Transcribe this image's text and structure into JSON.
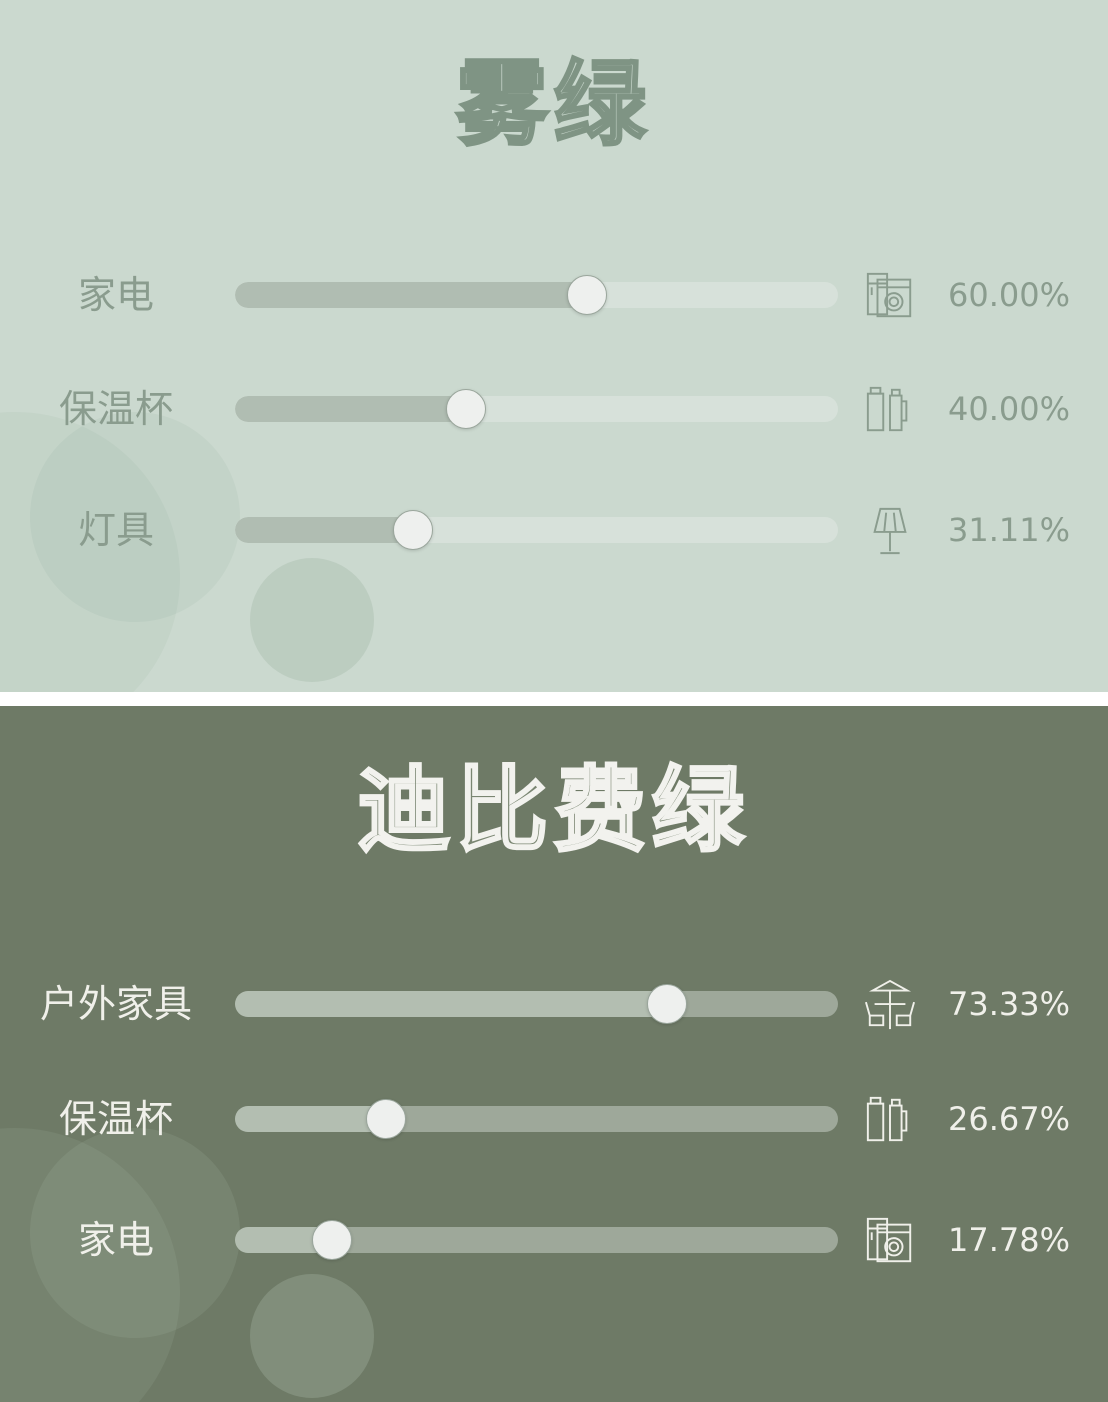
{
  "colors": {
    "panel1_bg": "#cbd9cf",
    "panel2_bg": "#6e7a66"
  },
  "chart_data": [
    {
      "type": "bar",
      "orientation": "horizontal",
      "style": "slider",
      "title": "雾绿",
      "xlim": [
        0,
        100
      ],
      "categories": [
        "家电",
        "保温杯",
        "灯具"
      ],
      "values": [
        60.0,
        40.0,
        31.11
      ],
      "value_labels": [
        "60.00%",
        "40.00%",
        "31.11%"
      ],
      "icons": [
        "appliance-icon",
        "thermos-icon",
        "lamp-icon"
      ],
      "colors": {
        "bg": "#cbd9cf",
        "text": "#8a9c8e",
        "fill": "#b0bdb2",
        "track": "#d7e1da",
        "title_stroke": "#7f9484"
      }
    },
    {
      "type": "bar",
      "orientation": "horizontal",
      "style": "slider",
      "title": "迪比费绿",
      "xlim": [
        0,
        100
      ],
      "categories": [
        "户外家具",
        "保温杯",
        "家电"
      ],
      "values": [
        73.33,
        26.67,
        17.78
      ],
      "value_labels": [
        "73.33%",
        "26.67%",
        "17.78%"
      ],
      "icons": [
        "outdoor-furniture-icon",
        "thermos-icon",
        "appliance-icon"
      ],
      "colors": {
        "bg": "#6e7a66",
        "text": "#f0f0ea",
        "fill": "#b3beb1",
        "track": "#9ea89a",
        "title_stroke": "#f2f2ee"
      }
    }
  ]
}
